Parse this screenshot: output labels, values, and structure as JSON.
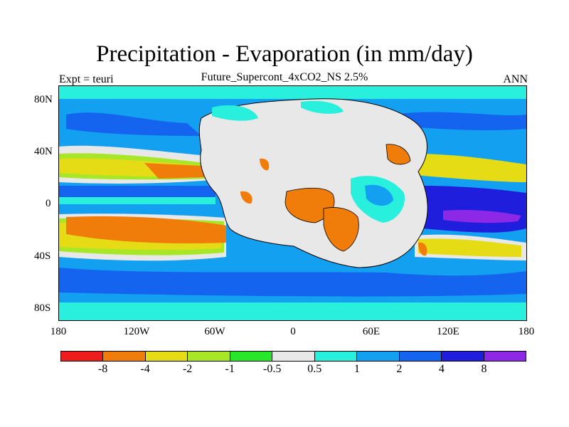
{
  "title": "Precipitation - Evaporation (in mm/day)",
  "subtitle": "Future_Supercont_4xCO2_NS 2.5%",
  "left_label": "Expt = teuri",
  "right_label": "ANN",
  "lat_ticks": [
    "80N",
    "40N",
    "0",
    "40S",
    "80S"
  ],
  "lon_ticks": [
    "180",
    "120W",
    "60W",
    "0",
    "60E",
    "120E",
    "180"
  ],
  "colorbar": {
    "colors": [
      "#ee1c1c",
      "#f07c0a",
      "#e6dc16",
      "#a8e628",
      "#28e628",
      "#e8e8e8",
      "#28f0dc",
      "#14a0f0",
      "#1464f0",
      "#1e1edc",
      "#8c28e6"
    ],
    "labels": [
      "-8",
      "-4",
      "-2",
      "-1",
      "-0.5",
      "0.5",
      "1",
      "2",
      "4",
      "8"
    ]
  },
  "legend_colors": {
    "land_gray": "#e8e8e8",
    "ocean_blue": "#14a0f0"
  }
}
